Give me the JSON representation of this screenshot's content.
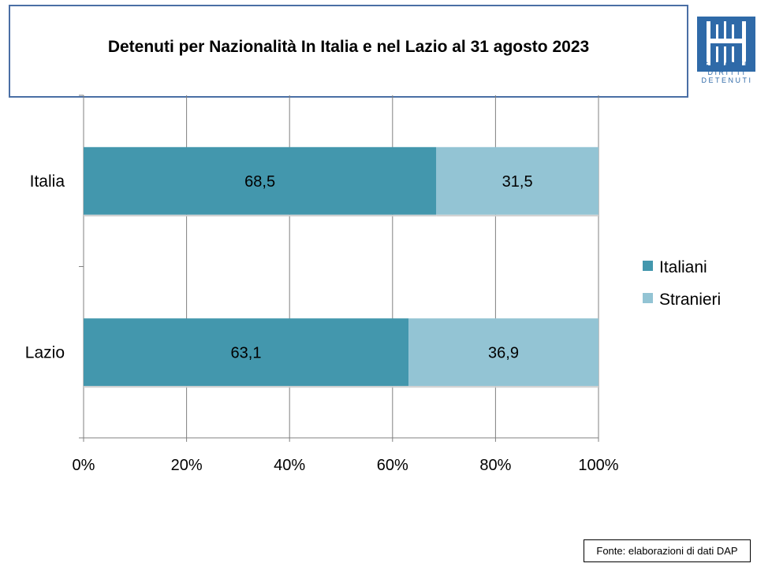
{
  "slide": {
    "title": "Detenuti per Nazionalità In Italia e nel Lazio al 31 agosto 2023",
    "source_note": "Fonte: elaborazioni di dati DAP",
    "logo_lines": [
      "GARANTE",
      "DIRITTI",
      "DETENUTI"
    ]
  },
  "chart_data": {
    "type": "bar",
    "orientation": "horizontal",
    "stacked": "percent",
    "categories": [
      "Italia",
      "Lazio"
    ],
    "series": [
      {
        "name": "Italiani",
        "color": "#4397ad",
        "values": [
          68.5,
          63.1
        ],
        "labels": [
          "68,5",
          "63,1"
        ]
      },
      {
        "name": "Stranieri",
        "color": "#93c4d4",
        "values": [
          31.5,
          36.9
        ],
        "labels": [
          "31,5",
          "36,9"
        ]
      }
    ],
    "x_ticks": [
      "0%",
      "20%",
      "40%",
      "60%",
      "80%",
      "100%"
    ],
    "xlim": [
      0,
      100
    ],
    "grid": true,
    "legend_position": "right"
  },
  "colors": {
    "title_border": "#4a6fa5",
    "logo": "#2f6aa8",
    "grid": "#808080"
  }
}
